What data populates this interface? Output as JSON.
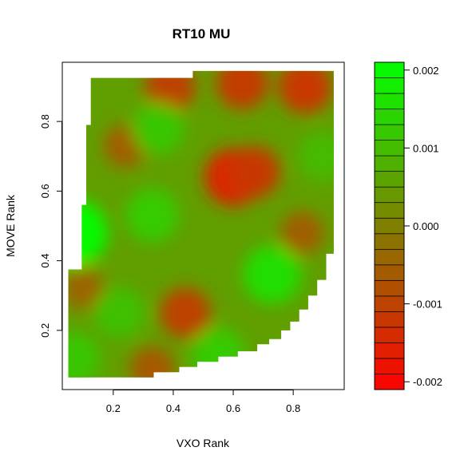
{
  "chart_data": {
    "type": "heatmap",
    "title": "RT10 MU",
    "xlabel": "VXO Rank",
    "ylabel": "MOVE Rank",
    "xlim": [
      0.03,
      0.97
    ],
    "ylim": [
      0.03,
      0.97
    ],
    "x_ticks": [
      "0.2",
      "0.4",
      "0.6",
      "0.8"
    ],
    "y_ticks": [
      "0.2",
      "0.4",
      "0.6",
      "0.8"
    ],
    "x_tick_values": [
      0.2,
      0.4,
      0.6,
      0.8
    ],
    "y_tick_values": [
      0.2,
      0.4,
      0.6,
      0.8
    ],
    "colorbar": {
      "min": -0.0021,
      "max": 0.0021,
      "levels": 21,
      "low_color": "#ff0000",
      "high_color": "#00ff00",
      "tick_values": [
        0.002,
        0.001,
        0.0,
        -0.001,
        -0.002
      ],
      "tick_labels": [
        "0.002",
        "0.001",
        "0.000",
        "-0.001",
        "-0.002"
      ]
    },
    "grid": false,
    "legend": "right",
    "data_region": [
      [
        0.05,
        0.065
      ],
      [
        0.335,
        0.065
      ],
      [
        0.335,
        0.08
      ],
      [
        0.42,
        0.08
      ],
      [
        0.42,
        0.095
      ],
      [
        0.48,
        0.095
      ],
      [
        0.48,
        0.11
      ],
      [
        0.55,
        0.11
      ],
      [
        0.55,
        0.125
      ],
      [
        0.615,
        0.125
      ],
      [
        0.615,
        0.14
      ],
      [
        0.68,
        0.14
      ],
      [
        0.68,
        0.16
      ],
      [
        0.72,
        0.16
      ],
      [
        0.72,
        0.175
      ],
      [
        0.76,
        0.175
      ],
      [
        0.76,
        0.2
      ],
      [
        0.79,
        0.2
      ],
      [
        0.79,
        0.225
      ],
      [
        0.82,
        0.225
      ],
      [
        0.82,
        0.26
      ],
      [
        0.85,
        0.26
      ],
      [
        0.85,
        0.3
      ],
      [
        0.88,
        0.3
      ],
      [
        0.88,
        0.345
      ],
      [
        0.91,
        0.345
      ],
      [
        0.91,
        0.42
      ],
      [
        0.935,
        0.42
      ],
      [
        0.935,
        0.945
      ],
      [
        0.465,
        0.945
      ],
      [
        0.465,
        0.925
      ],
      [
        0.125,
        0.925
      ],
      [
        0.125,
        0.79
      ],
      [
        0.11,
        0.79
      ],
      [
        0.11,
        0.56
      ],
      [
        0.095,
        0.56
      ],
      [
        0.095,
        0.375
      ],
      [
        0.05,
        0.375
      ]
    ],
    "hotspots": [
      {
        "x": 0.6,
        "y": 0.64,
        "value": -0.0016
      },
      {
        "x": 0.67,
        "y": 0.655,
        "value": -0.0012
      },
      {
        "x": 0.39,
        "y": 0.9,
        "value": -0.0011
      },
      {
        "x": 0.63,
        "y": 0.91,
        "value": -0.0012
      },
      {
        "x": 0.84,
        "y": 0.9,
        "value": -0.0013
      },
      {
        "x": 0.44,
        "y": 0.25,
        "value": -0.0011
      },
      {
        "x": 0.24,
        "y": 0.73,
        "value": -0.0006
      },
      {
        "x": 0.33,
        "y": 0.09,
        "value": -0.0007
      },
      {
        "x": 0.1,
        "y": 0.32,
        "value": -0.0005
      },
      {
        "x": 0.83,
        "y": 0.48,
        "value": -0.0006
      },
      {
        "x": 0.07,
        "y": 0.48,
        "value": 0.0022
      },
      {
        "x": 0.07,
        "y": 0.12,
        "value": 0.0012
      },
      {
        "x": 0.33,
        "y": 0.53,
        "value": 0.0013
      },
      {
        "x": 0.73,
        "y": 0.36,
        "value": 0.0016
      },
      {
        "x": 0.55,
        "y": 0.13,
        "value": 0.0013
      },
      {
        "x": 0.35,
        "y": 0.78,
        "value": 0.0012
      },
      {
        "x": 0.22,
        "y": 0.25,
        "value": 0.0011
      },
      {
        "x": 0.9,
        "y": 0.7,
        "value": 0.001
      }
    ]
  }
}
